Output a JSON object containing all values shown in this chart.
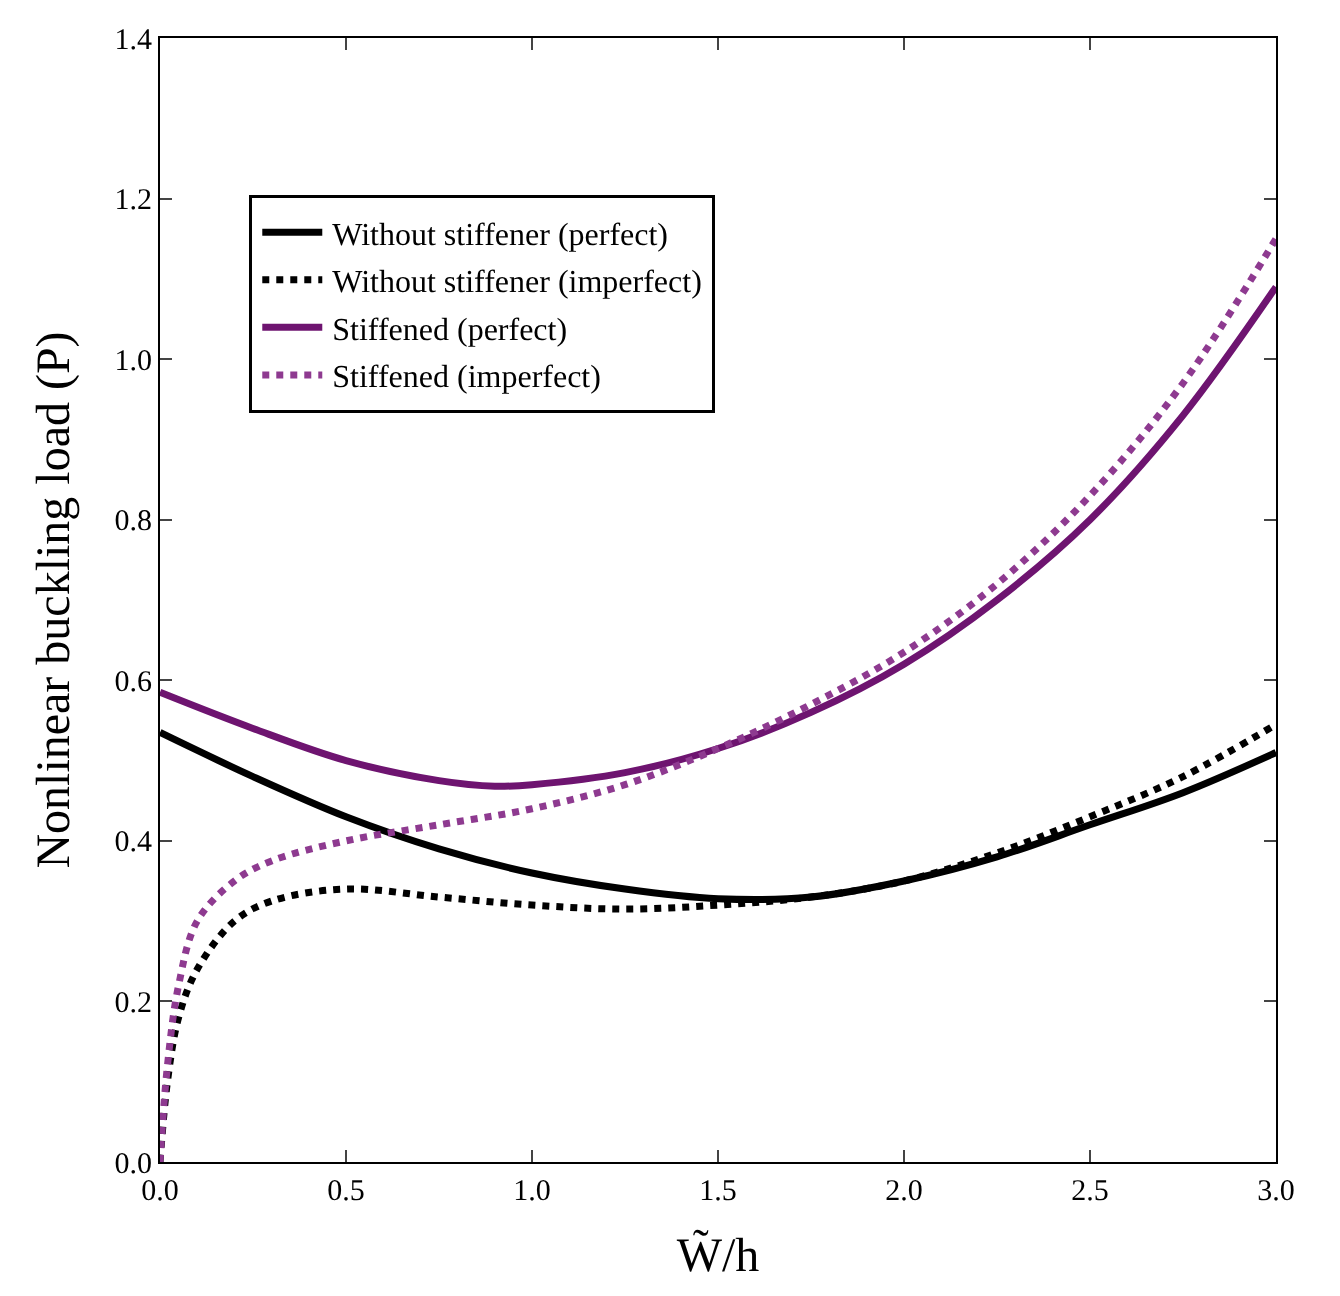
{
  "chart_data": {
    "type": "line",
    "xlabel": "W̃/h",
    "ylabel": "Nonlinear buckling load (P)",
    "xlim": [
      0,
      3
    ],
    "ylim": [
      0,
      1.4
    ],
    "xticks": [
      {
        "value": 0,
        "label": "0.0"
      },
      {
        "value": 0.5,
        "label": "0.5"
      },
      {
        "value": 1,
        "label": "1.0"
      },
      {
        "value": 1.5,
        "label": "1.5"
      },
      {
        "value": 2,
        "label": "2.0"
      },
      {
        "value": 2.5,
        "label": "2.5"
      },
      {
        "value": 3,
        "label": "3.0"
      }
    ],
    "yticks": [
      {
        "value": 0,
        "label": "0.0"
      },
      {
        "value": 0.2,
        "label": "0.2"
      },
      {
        "value": 0.4,
        "label": "0.4"
      },
      {
        "value": 0.6,
        "label": "0.6"
      },
      {
        "value": 0.8,
        "label": "0.8"
      },
      {
        "value": 1,
        "label": "1.0"
      },
      {
        "value": 1.2,
        "label": "1.2"
      },
      {
        "value": 1.4,
        "label": "1.4"
      }
    ],
    "legend": "top left",
    "marker": "none",
    "series": [
      {
        "name": "Without stiffener (perfect)",
        "color": "#000000",
        "line_style": "solid",
        "x": [
          0,
          0.25,
          0.5,
          0.75,
          1,
          1.25,
          1.5,
          1.75,
          2,
          2.25,
          2.5,
          2.75,
          3
        ],
        "values": [
          0.535,
          0.48,
          0.43,
          0.39,
          0.36,
          0.34,
          0.328,
          0.33,
          0.35,
          0.38,
          0.42,
          0.46,
          0.51
        ]
      },
      {
        "name": "Without stiffener (imperfect)",
        "color": "#000000",
        "line_style": "dotted",
        "x": [
          0,
          0.02,
          0.05,
          0.1,
          0.2,
          0.3,
          0.5,
          0.75,
          1,
          1.25,
          1.5,
          1.75,
          2,
          2.25,
          2.5,
          2.75,
          3
        ],
        "values": [
          0,
          0.1,
          0.18,
          0.24,
          0.3,
          0.325,
          0.34,
          0.33,
          0.32,
          0.315,
          0.32,
          0.33,
          0.35,
          0.385,
          0.43,
          0.48,
          0.545
        ]
      },
      {
        "name": "Stiffened (perfect)",
        "color": "#6e1470",
        "line_style": "solid",
        "x": [
          0,
          0.25,
          0.5,
          0.75,
          0.9,
          1,
          1.25,
          1.5,
          1.75,
          2,
          2.25,
          2.5,
          2.75,
          3
        ],
        "values": [
          0.585,
          0.54,
          0.5,
          0.475,
          0.468,
          0.47,
          0.485,
          0.515,
          0.56,
          0.62,
          0.7,
          0.8,
          0.93,
          1.09
        ]
      },
      {
        "name": "Stiffened (imperfect)",
        "color": "#8e3a90",
        "line_style": "dotted",
        "x": [
          0,
          0.02,
          0.05,
          0.1,
          0.2,
          0.3,
          0.5,
          0.75,
          1,
          1.25,
          1.5,
          1.75,
          2,
          2.25,
          2.5,
          2.75,
          3
        ],
        "values": [
          0,
          0.12,
          0.22,
          0.3,
          0.35,
          0.375,
          0.4,
          0.42,
          0.44,
          0.47,
          0.515,
          0.57,
          0.635,
          0.72,
          0.83,
          0.97,
          1.15
        ]
      }
    ]
  }
}
